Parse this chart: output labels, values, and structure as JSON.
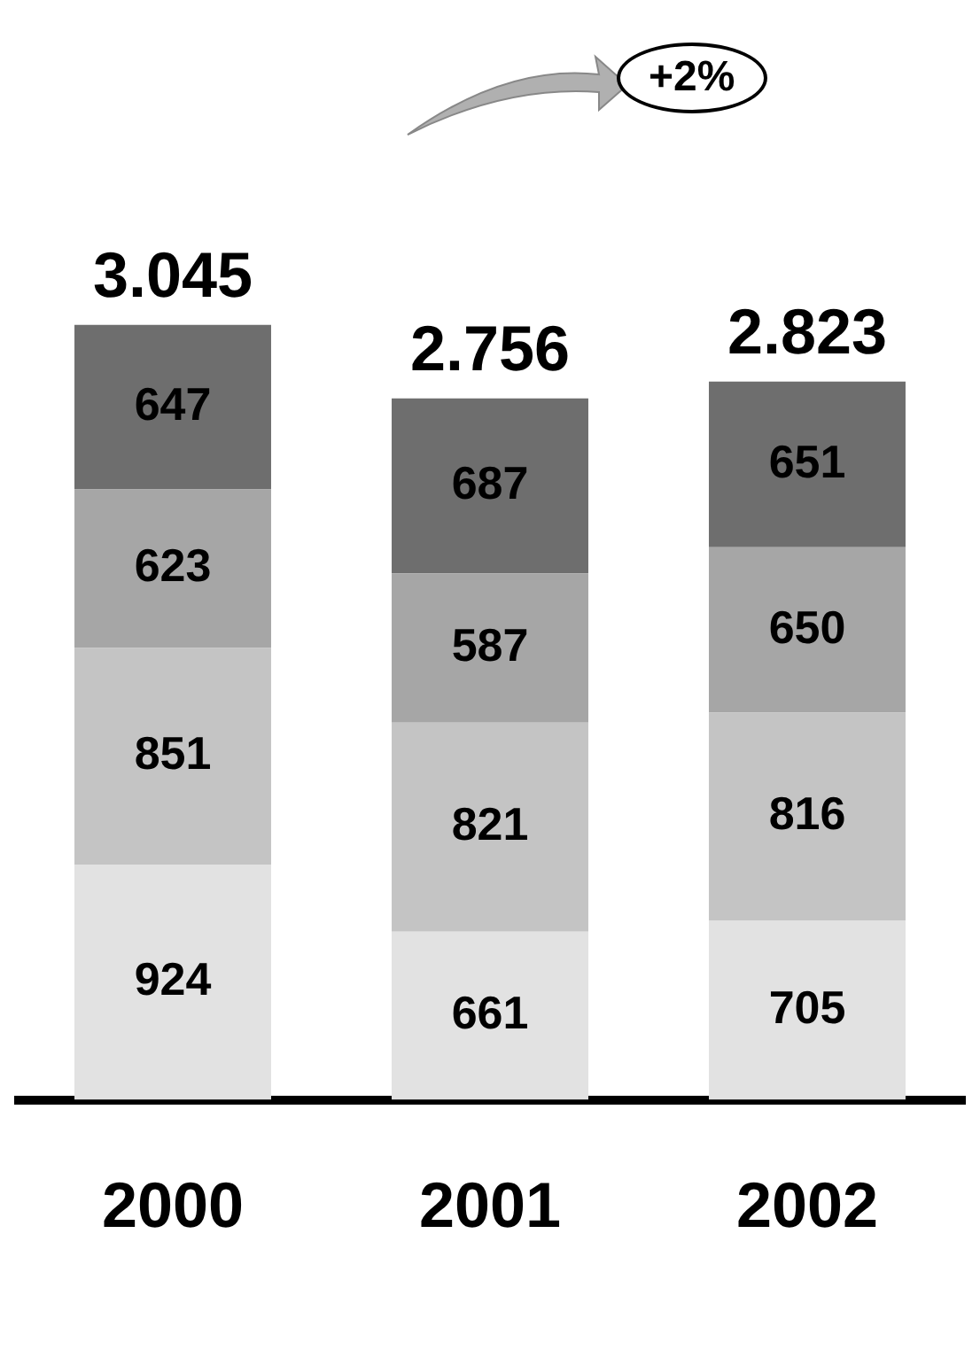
{
  "chart_data": {
    "type": "bar",
    "stacked": true,
    "categories": [
      "2000",
      "2001",
      "2002"
    ],
    "series": [
      {
        "color": "#e2e2e2",
        "values": [
          924,
          661,
          705
        ]
      },
      {
        "color": "#c4c4c4",
        "values": [
          851,
          821,
          816
        ]
      },
      {
        "color": "#a6a6a6",
        "values": [
          623,
          587,
          650
        ]
      },
      {
        "color": "#6e6e6e",
        "values": [
          647,
          687,
          651
        ]
      }
    ],
    "data_labels": true,
    "totals": [
      "3.045",
      "2.756",
      "2.823"
    ],
    "annotations": [
      "+2%"
    ],
    "legend": false,
    "grid": false
  }
}
